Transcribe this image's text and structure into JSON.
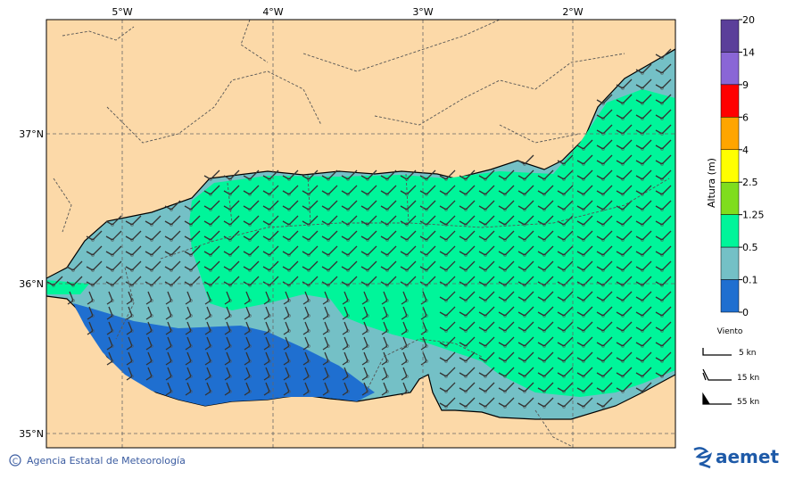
{
  "map": {
    "lon_labels": [
      "5°W",
      "4°W",
      "3°W",
      "2°W"
    ],
    "lat_labels": [
      "37°N",
      "36°N",
      "35°N"
    ]
  },
  "colorbar": {
    "title": "Altura (m)",
    "levels": [
      20,
      14,
      9,
      6,
      4,
      2.5,
      1.25,
      0.5,
      0.1,
      0
    ],
    "colors": [
      "#5b3f9a",
      "#8a66d6",
      "#ff0000",
      "#ffa500",
      "#ffff00",
      "#7fdd1e",
      "#00f59a",
      "#74c0c6",
      "#1f6fd0"
    ]
  },
  "wind_legend": {
    "title": "Viento",
    "items": [
      "5 kn",
      "15 kn",
      "55 kn"
    ]
  },
  "footer": {
    "symbol": "C",
    "credit": "Agencia Estatal de Meteorología",
    "logo": "aemet"
  }
}
